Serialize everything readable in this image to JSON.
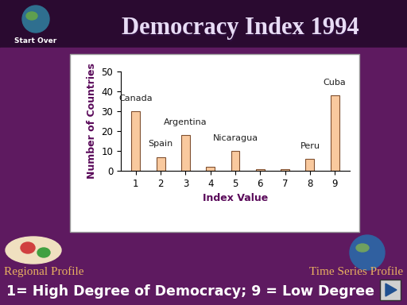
{
  "chart_data": {
    "type": "bar",
    "title": "Democracy Index 1994",
    "x_label": "Index Value",
    "y_label": "Number of Countries",
    "categories": [
      "1",
      "2",
      "3",
      "4",
      "5",
      "6",
      "7",
      "8",
      "9"
    ],
    "values": [
      30,
      7,
      18,
      2,
      10,
      1,
      1,
      6,
      38
    ],
    "color": "#f9c99e",
    "ylim": [
      0,
      50
    ],
    "yticks": [
      0,
      10,
      20,
      30,
      40,
      50
    ],
    "grid": false,
    "annotations": [
      {
        "text": "Canada",
        "category": "1"
      },
      {
        "text": "Spain",
        "category": "2"
      },
      {
        "text": "Argentina",
        "category": "3"
      },
      {
        "text": "Nicaragua",
        "category": "5"
      },
      {
        "text": "Peru",
        "category": "8"
      },
      {
        "text": "Cuba",
        "category": "9"
      }
    ]
  },
  "page": {
    "button": "Start Over",
    "footer_left": "Regional Profile",
    "footer_right": "Time Series Profile",
    "caption": "1= High Degree of Democracy; 9 = Low Degree"
  }
}
